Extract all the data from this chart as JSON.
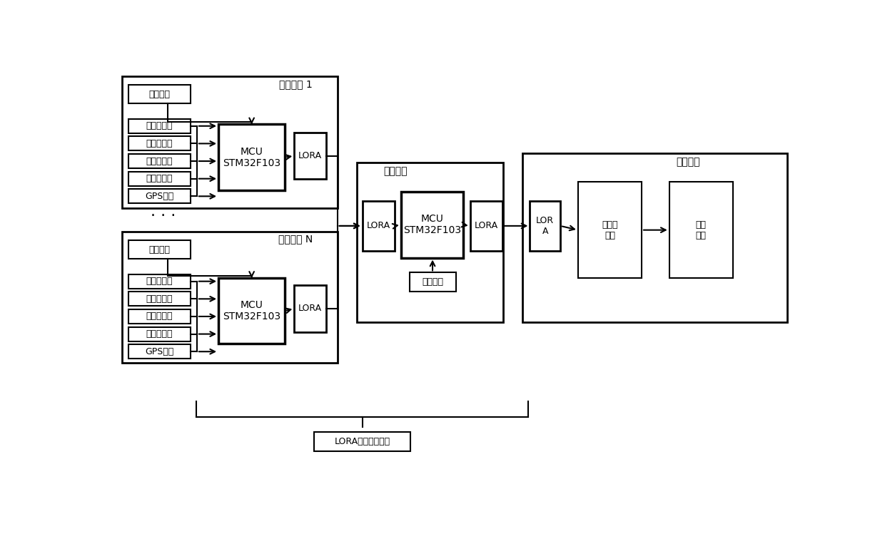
{
  "bg_color": "#ffffff",
  "line_color": "#000000",
  "collect_node1_label": "采集节点 1",
  "collect_nodeN_label": "采集节点 N",
  "relay_label": "中继节点",
  "server_label": "服务终端",
  "lora_net_label": "LORA无线传输网络",
  "power_label": "供电模块",
  "mcu_label": "MCU\nSTM32F103",
  "lora_label": "LORA",
  "remote_server_label": "远程服\n务器",
  "display_label": "显示\n终端",
  "lora_b_label": "LOR\nA",
  "dots_label": "· · ·",
  "sensors": [
    "温度传感器",
    "湿度传感器",
    "风速传感器",
    "气压传感器",
    "GPS定位"
  ]
}
